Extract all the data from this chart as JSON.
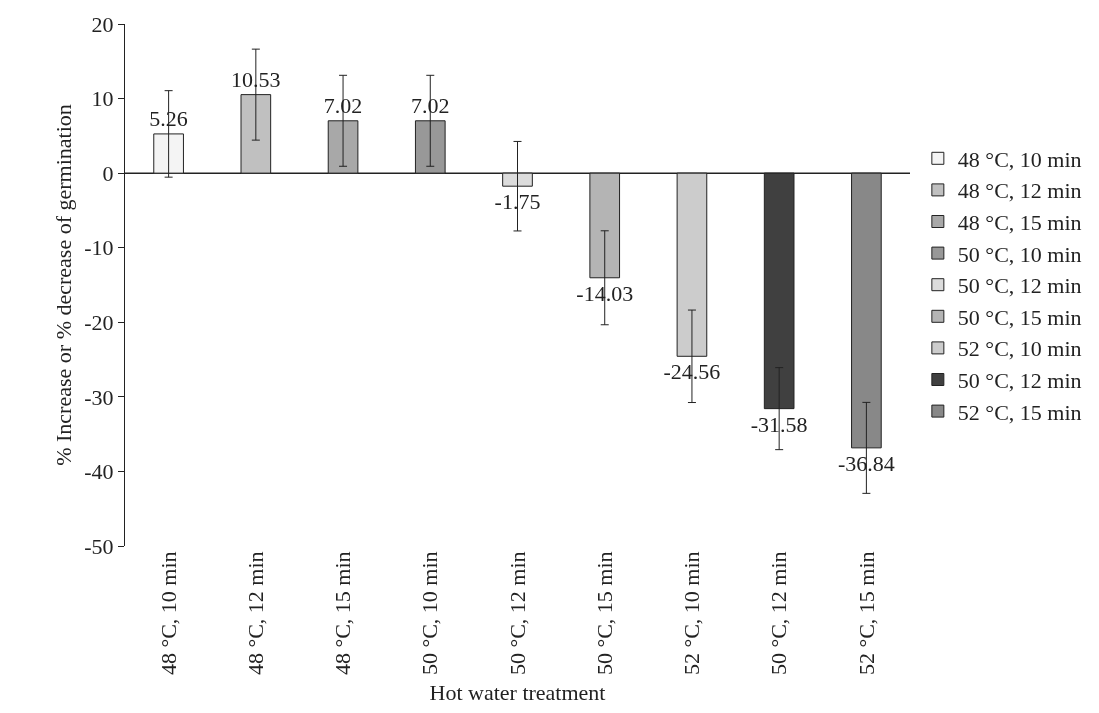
{
  "chart_data": {
    "type": "bar",
    "xlabel": "Hot water treatment",
    "ylabel": "% Increase or % decrease of germination",
    "categories": [
      "48 °C, 10 min",
      "48 °C, 12 min",
      "48 °C, 15 min",
      "50 °C, 10 min",
      "50 °C, 12 min",
      "50 °C, 15 min",
      "52 °C, 10 min",
      "50 °C, 12 min",
      "52 °C, 15 min"
    ],
    "series": [
      {
        "name": "48 °C, 10 min",
        "color": "#f4f4f4",
        "values": [
          5.26,
          null,
          null,
          null,
          null,
          null,
          null,
          null,
          null
        ],
        "errors": [
          5.8,
          null,
          null,
          null,
          null,
          null,
          null,
          null,
          null
        ]
      },
      {
        "name": "48 °C, 12 min",
        "color": "#c0c0c0",
        "values": [
          null,
          10.53,
          null,
          null,
          null,
          null,
          null,
          null,
          null
        ],
        "errors": [
          null,
          6.1,
          null,
          null,
          null,
          null,
          null,
          null,
          null
        ]
      },
      {
        "name": "48 °C, 15 min",
        "color": "#a8a8a8",
        "values": [
          null,
          null,
          7.02,
          null,
          null,
          null,
          null,
          null,
          null
        ],
        "errors": [
          null,
          null,
          6.1,
          null,
          null,
          null,
          null,
          null,
          null
        ]
      },
      {
        "name": "50 °C, 10 min",
        "color": "#989898",
        "values": [
          null,
          null,
          null,
          7.02,
          null,
          null,
          null,
          null,
          null
        ],
        "errors": [
          null,
          null,
          null,
          6.1,
          null,
          null,
          null,
          null,
          null
        ]
      },
      {
        "name": "50 °C, 12 min",
        "color": "#dcdcdc",
        "values": [
          null,
          null,
          null,
          null,
          -1.75,
          null,
          null,
          null,
          null
        ],
        "errors": [
          null,
          null,
          null,
          null,
          6,
          null,
          null,
          null,
          null
        ]
      },
      {
        "name": "50 °C, 15 min",
        "color": "#b4b4b4",
        "values": [
          null,
          null,
          null,
          null,
          null,
          -14.03,
          null,
          null,
          null
        ],
        "errors": [
          null,
          null,
          null,
          null,
          null,
          6.3,
          null,
          null,
          null
        ]
      },
      {
        "name": "52 °C, 10 min",
        "color": "#cccccc",
        "values": [
          null,
          null,
          null,
          null,
          null,
          null,
          -24.56,
          null,
          null
        ],
        "errors": [
          null,
          null,
          null,
          null,
          null,
          null,
          6.2,
          null,
          null
        ]
      },
      {
        "name": "50 °C, 12 min",
        "color": "#404040",
        "values": [
          null,
          null,
          null,
          null,
          null,
          null,
          null,
          -31.58,
          null
        ],
        "errors": [
          null,
          null,
          null,
          null,
          null,
          null,
          null,
          5.5,
          null
        ]
      },
      {
        "name": "52 °C, 15 min",
        "color": "#888888",
        "values": [
          null,
          null,
          null,
          null,
          null,
          null,
          null,
          null,
          -36.84
        ],
        "errors": [
          null,
          null,
          null,
          null,
          null,
          null,
          null,
          null,
          6.1
        ]
      }
    ],
    "ylim": [
      -50,
      20
    ],
    "yticks": [
      -50,
      -40,
      -30,
      -20,
      -10,
      0,
      10,
      20
    ],
    "ref_lines": [
      {
        "axis": "y",
        "value": 0,
        "color": "#222222",
        "line_style": "solid"
      }
    ],
    "legend": "right",
    "data_labels": true
  }
}
